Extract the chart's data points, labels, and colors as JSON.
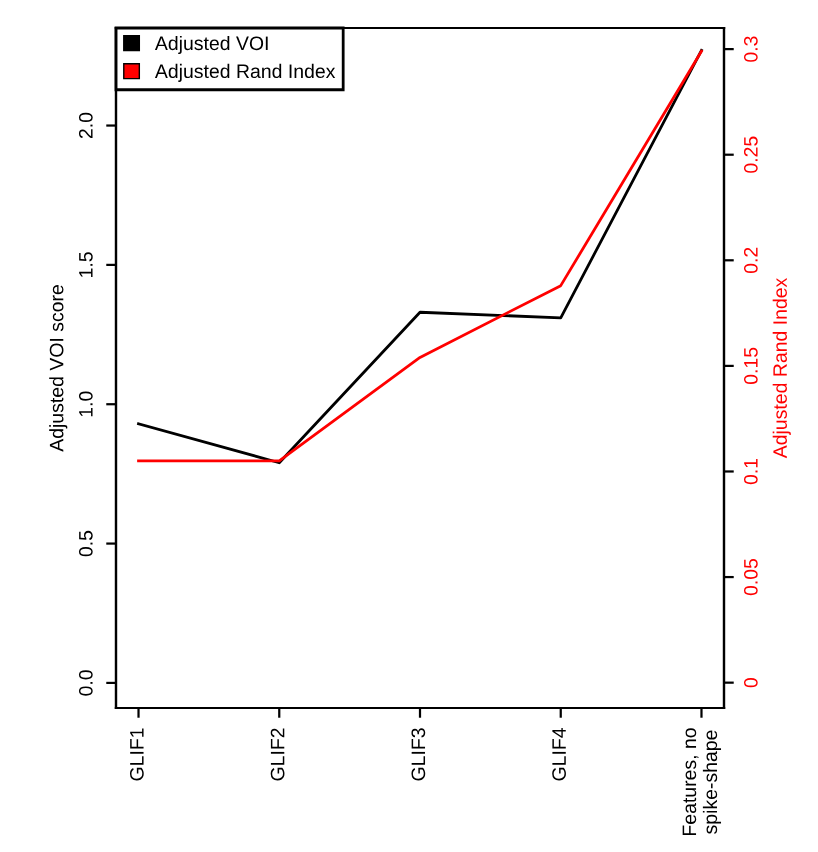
{
  "chart_data": {
    "type": "line",
    "categories": [
      "GLIF1",
      "GLIF2",
      "GLIF3",
      "GLIF4",
      "Features, no\nspike-shape"
    ],
    "series": [
      {
        "name": "Adjusted VOI",
        "color": "#000000",
        "values": [
          0.93,
          0.79,
          1.33,
          1.31,
          2.27
        ]
      },
      {
        "name": "Adjusted Rand Index",
        "color": "#ff0000",
        "axis": "y2",
        "values": [
          0.105,
          0.105,
          0.154,
          0.188,
          0.299
        ]
      }
    ],
    "ylabel": "Adjusted VOI score",
    "y2label": "Adjusted Rand Index",
    "ylim": [
      -0.09,
      2.35
    ],
    "yticks": [
      {
        "value": 0,
        "label": "0.0"
      },
      0.5,
      {
        "value": 1,
        "label": "1.0"
      },
      1.5,
      {
        "value": 2,
        "label": "2.0"
      }
    ],
    "y2lim": [
      -0.012,
      0.31
    ],
    "y2ticks": [
      0,
      0.05,
      0.1,
      0.15,
      0.2,
      0.25,
      0.3
    ],
    "legend": "top left",
    "grid": false
  }
}
